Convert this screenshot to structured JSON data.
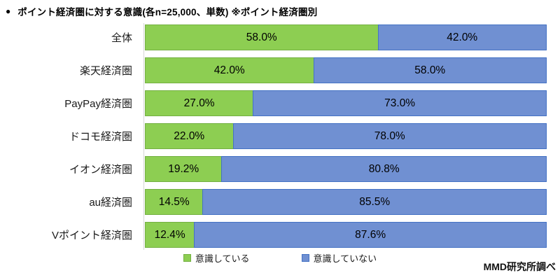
{
  "header": {
    "bullet": "●",
    "title": "ポイント経済圏に対する意識(各n=25,000、単数) ※ポイント経済圏別"
  },
  "colors": {
    "green_fill": "#8dce52",
    "green_border": "#74b042",
    "blue_fill": "#7090d2",
    "blue_border": "#4472c4",
    "axis_line": "#d6d6d6"
  },
  "legend": {
    "items": [
      {
        "label": "意識している",
        "color": "#8dce52"
      },
      {
        "label": "意識していない",
        "color": "#7090d2"
      }
    ]
  },
  "footer": {
    "source": "MMD研究所調べ"
  },
  "chart_data": {
    "type": "bar",
    "orientation": "horizontal-stacked",
    "title": "ポイント経済圏に対する意識(各n=25,000、単数) ※ポイント経済圏別",
    "categories": [
      "全体",
      "楽天経済圏",
      "PayPay経済圏",
      "ドコモ経済圏",
      "イオン経済圏",
      "au経済圏",
      "Vポイント経済圏"
    ],
    "series": [
      {
        "name": "意識している",
        "values": [
          58.0,
          42.0,
          27.0,
          22.0,
          19.2,
          14.5,
          12.4
        ],
        "labels": [
          "58.0%",
          "42.0%",
          "27.0%",
          "22.0%",
          "19.2%",
          "14.5%",
          "12.4%"
        ],
        "color": "#8dce52"
      },
      {
        "name": "意識していない",
        "values": [
          42.0,
          58.0,
          73.0,
          78.0,
          80.8,
          85.5,
          87.6
        ],
        "labels": [
          "42.0%",
          "58.0%",
          "73.0%",
          "78.0%",
          "80.8%",
          "85.5%",
          "87.6%"
        ],
        "color": "#7090d2"
      }
    ],
    "xlim": [
      0,
      100
    ],
    "value_suffix": "%",
    "grid": false,
    "legend_position": "bottom",
    "value_labels": "centered-inside-segments"
  }
}
